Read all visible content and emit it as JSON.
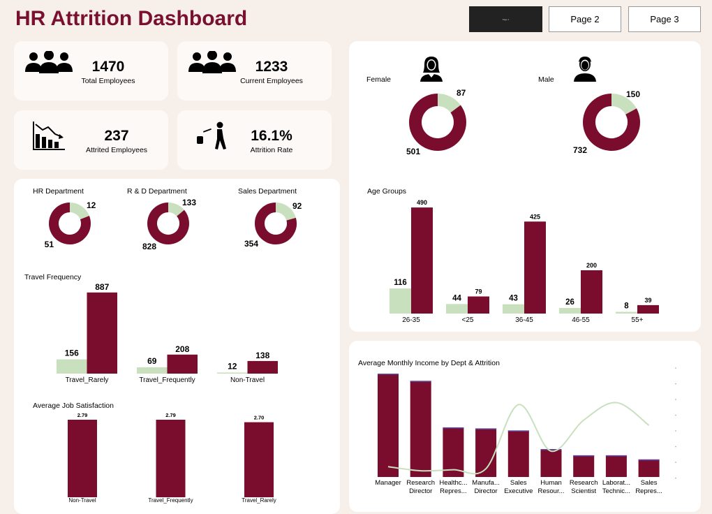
{
  "title": "HR Attrition Dashboard",
  "nav": {
    "page1": "Page 1",
    "page2": "Page 2",
    "page3": "Page 3"
  },
  "colors": {
    "dark": "#7a0c2e",
    "light": "#c9e0bf",
    "title": "#7a1030"
  },
  "kpis": [
    {
      "value": "1470",
      "label": "Total Employees",
      "icon": "people-group-icon"
    },
    {
      "value": "1233",
      "label": "Current Employees",
      "icon": "people-group-icon"
    },
    {
      "value": "237",
      "label": "Attrited Employees",
      "icon": "declining-chart-icon"
    },
    {
      "value": "16.1%",
      "label": "Attrition Rate",
      "icon": "person-leaving-icon"
    }
  ],
  "chart_data": [
    {
      "type": "pie",
      "title": "Female",
      "series": [
        {
          "name": "",
          "values": [
            87,
            501
          ]
        }
      ]
    },
    {
      "type": "pie",
      "title": "Male",
      "series": [
        {
          "name": "",
          "values": [
            150,
            732
          ]
        }
      ]
    },
    {
      "type": "pie",
      "title": "HR Department",
      "values": [
        12,
        51
      ]
    },
    {
      "type": "pie",
      "title": "R & D Department",
      "values": [
        133,
        828
      ]
    },
    {
      "type": "pie",
      "title": "Sales Department",
      "values": [
        92,
        354
      ]
    },
    {
      "type": "bar",
      "title": "Age Groups",
      "categories": [
        "26-35",
        "<25",
        "36-45",
        "46-55",
        "55+"
      ],
      "series": [
        {
          "name": "",
          "values": [
            116,
            44,
            43,
            26,
            8
          ]
        },
        {
          "name": "",
          "values": [
            490,
            79,
            425,
            200,
            39
          ]
        }
      ]
    },
    {
      "type": "bar",
      "title": "Travel Frequency",
      "categories": [
        "Travel_Rarely",
        "Travel_Frequently",
        "Non-Travel"
      ],
      "series": [
        {
          "name": "",
          "values": [
            156,
            69,
            12
          ]
        },
        {
          "name": "",
          "values": [
            887,
            208,
            138
          ]
        }
      ]
    },
    {
      "type": "bar",
      "title": "Average Job Satisfaction",
      "categories": [
        "Non-Travel",
        "Travel_Frequently",
        "Travel_Rarely"
      ],
      "values": [
        2.79,
        2.79,
        2.7
      ],
      "labels": [
        "2.79",
        "2.79",
        "2.70"
      ]
    },
    {
      "type": "bar",
      "title": "Average Monthly Income by Dept & Attrition",
      "categories": [
        [
          "Manager",
          ""
        ],
        [
          "Research",
          "Director"
        ],
        [
          "Healthc...",
          "Repres..."
        ],
        [
          "Manufa...",
          "Director"
        ],
        [
          "Sales",
          "Executive"
        ],
        [
          "Human",
          "Resour..."
        ],
        [
          "Research",
          "Scientist"
        ],
        [
          "Laborat...",
          "Technic..."
        ],
        [
          "Sales",
          "Repres..."
        ]
      ],
      "series": [
        {
          "name": "",
          "values": [
            1.0,
            0.93,
            0.48,
            0.47,
            0.45,
            0.27,
            0.21,
            0.21,
            0.17
          ]
        },
        {
          "name": "",
          "values": [
            0.1,
            0.06,
            0.07,
            0.08,
            0.7,
            0.25,
            0.55,
            0.72,
            0.5
          ]
        }
      ]
    }
  ]
}
